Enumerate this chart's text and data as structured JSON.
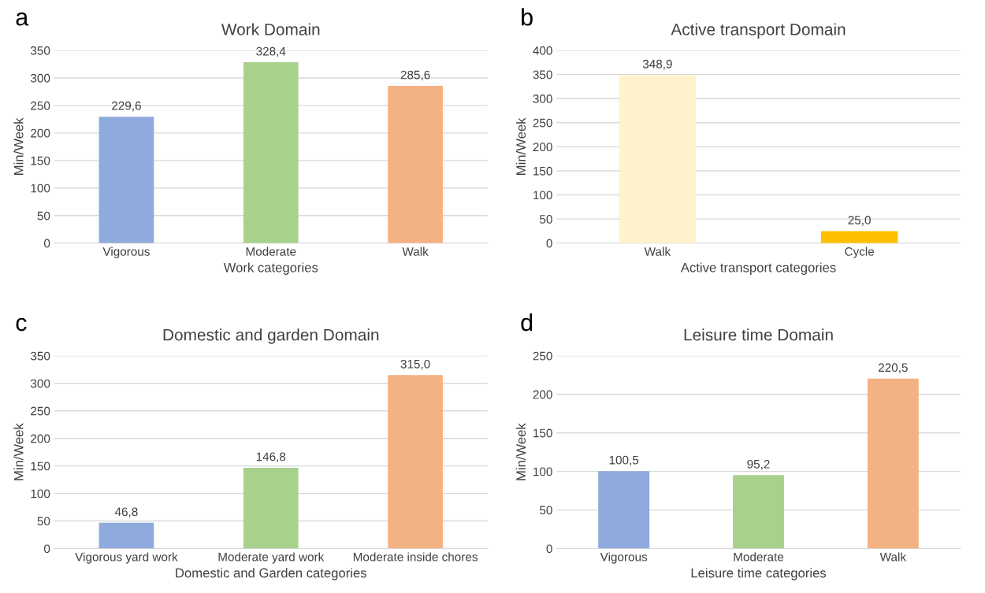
{
  "chart_data": [
    {
      "type": "bar",
      "title": "Work Domain",
      "xlabel": "Work categories",
      "ylabel": "Min/Week",
      "annotations": [
        "a"
      ],
      "categories": [
        "Vigorous",
        "Moderate",
        "Walk"
      ],
      "values": [
        229.6,
        328.4,
        285.6
      ],
      "value_labels": [
        "229,6",
        "328,4",
        "285,6"
      ],
      "colors": [
        "#8faadc",
        "#a9d18e",
        "#f4b183"
      ],
      "ylim": [
        0,
        350
      ],
      "yticks": [
        0,
        50,
        100,
        150,
        200,
        250,
        300,
        350
      ],
      "grid": "y",
      "legend": false
    },
    {
      "type": "bar",
      "title": "Active transport Domain",
      "xlabel": "Active transport categories",
      "ylabel": "Min/Week",
      "annotations": [
        "b"
      ],
      "categories": [
        "Walk",
        "Cycle"
      ],
      "values": [
        348.9,
        25.0
      ],
      "value_labels": [
        "348,9",
        "25,0"
      ],
      "colors": [
        "#fff2cc",
        "#ffc000"
      ],
      "ylim": [
        0,
        400
      ],
      "yticks": [
        0,
        50,
        100,
        150,
        200,
        250,
        300,
        350,
        400
      ],
      "grid": "y",
      "legend": false
    },
    {
      "type": "bar",
      "title": "Domestic and garden Domain",
      "xlabel": "Domestic and Garden categories",
      "ylabel": "Min/Week",
      "annotations": [
        "c"
      ],
      "categories": [
        "Vigorous yard work",
        "Moderate yard work",
        "Moderate inside chores"
      ],
      "values": [
        46.8,
        146.8,
        315.0
      ],
      "value_labels": [
        "46,8",
        "146,8",
        "315,0"
      ],
      "colors": [
        "#8faadc",
        "#a9d18e",
        "#f4b183"
      ],
      "ylim": [
        0,
        350
      ],
      "yticks": [
        0,
        50,
        100,
        150,
        200,
        250,
        300,
        350
      ],
      "grid": "y",
      "legend": false
    },
    {
      "type": "bar",
      "title": "Leisure time Domain",
      "xlabel": "Leisure time categories",
      "ylabel": "Min/Week",
      "annotations": [
        "d"
      ],
      "categories": [
        "Vigorous",
        "Moderate",
        "Walk"
      ],
      "values": [
        100.5,
        95.2,
        220.5
      ],
      "value_labels": [
        "100,5",
        "95,2",
        "220,5"
      ],
      "colors": [
        "#8faadc",
        "#a9d18e",
        "#f4b183"
      ],
      "ylim": [
        0,
        250
      ],
      "yticks": [
        0,
        50,
        100,
        150,
        200,
        250
      ],
      "grid": "y",
      "legend": false
    }
  ]
}
